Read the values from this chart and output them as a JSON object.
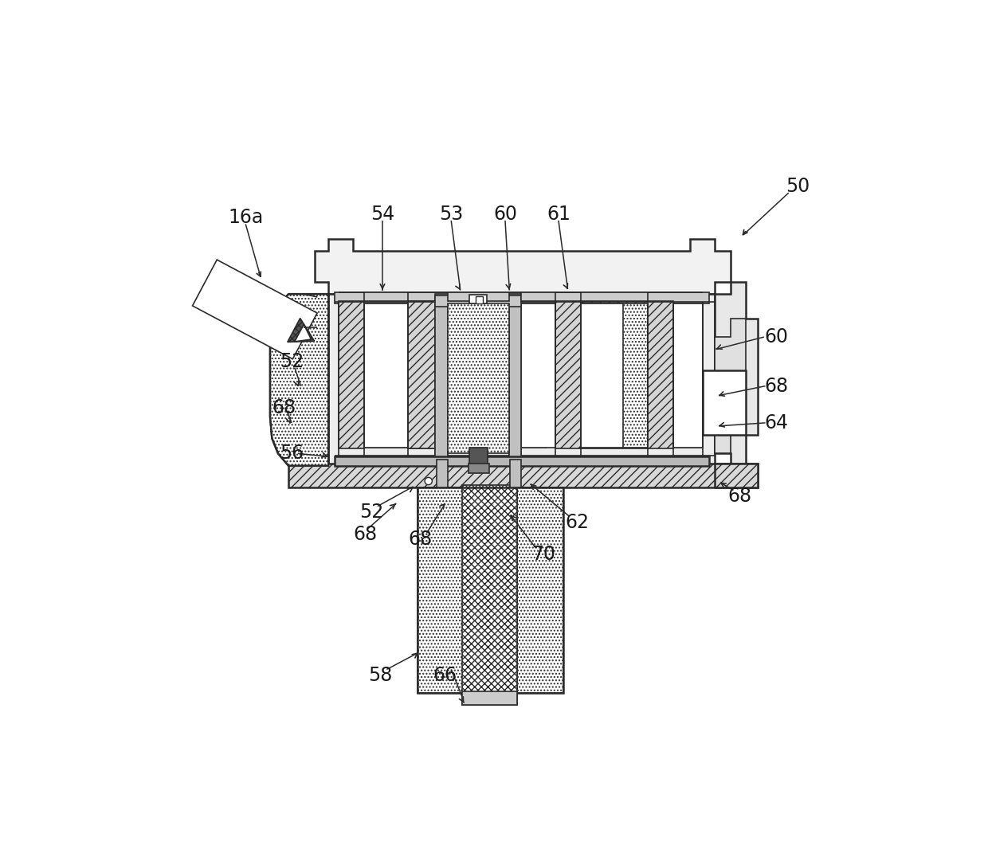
{
  "bg_color": "#ffffff",
  "lc": "#2a2a2a",
  "fig_w": 12.4,
  "fig_h": 10.81,
  "dpi": 100
}
